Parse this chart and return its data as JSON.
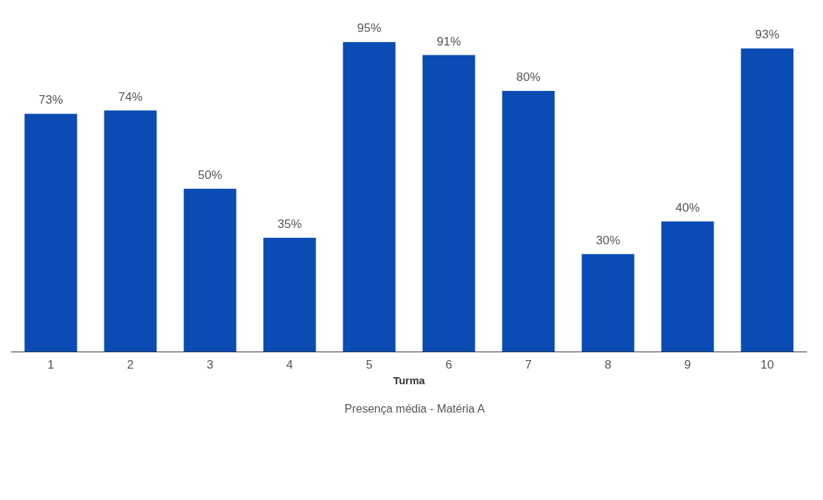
{
  "chart_data": {
    "type": "bar",
    "xlabel": "Turma",
    "categories": [
      "1",
      "2",
      "3",
      "4",
      "5",
      "6",
      "7",
      "8",
      "9",
      "10"
    ],
    "series": [
      {
        "name": "Presença média - Matéria A",
        "color": "#0a4bb4",
        "values": [
          73,
          74,
          50,
          35,
          95,
          91,
          80,
          30,
          40,
          93
        ],
        "value_labels": [
          "73%",
          "74%",
          "50%",
          "35%",
          "95%",
          "91%",
          "80%",
          "30%",
          "40%",
          "93%"
        ]
      }
    ],
    "legend": "bottom"
  }
}
